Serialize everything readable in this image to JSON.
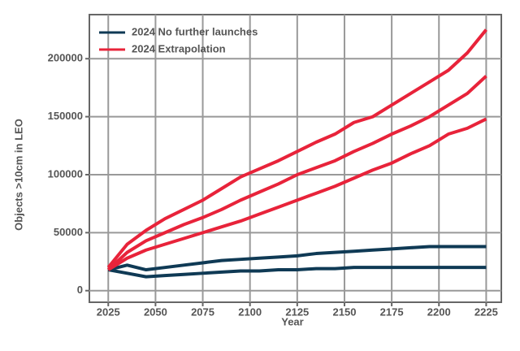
{
  "chart_data": {
    "type": "line",
    "x_label": "Year",
    "y_label": "Objects >10cm in LEO",
    "x": [
      2025,
      2035,
      2045,
      2055,
      2065,
      2075,
      2085,
      2095,
      2105,
      2115,
      2125,
      2135,
      2145,
      2155,
      2165,
      2175,
      2185,
      2195,
      2205,
      2215,
      2225
    ],
    "series": [
      {
        "name": "2024 No further launches",
        "color": "#0f3a55",
        "values": [
          18000,
          22000,
          18000,
          20000,
          22000,
          24000,
          26000,
          27000,
          28000,
          29000,
          30000,
          32000,
          33000,
          34000,
          35000,
          36000,
          37000,
          38000,
          38000,
          38000,
          38000
        ]
      },
      {
        "name": "2024 No further launches",
        "color": "#0f3a55",
        "values": [
          18000,
          15000,
          12000,
          13000,
          14000,
          15000,
          16000,
          17000,
          17000,
          18000,
          18000,
          19000,
          19000,
          20000,
          20000,
          20000,
          20000,
          20000,
          20000,
          20000,
          20000
        ]
      },
      {
        "name": "2024 Extrapolation",
        "color": "#e8233a",
        "values": [
          20000,
          40000,
          52000,
          62000,
          70000,
          78000,
          88000,
          98000,
          105000,
          112000,
          120000,
          128000,
          135000,
          145000,
          150000,
          160000,
          170000,
          180000,
          190000,
          205000,
          225000
        ]
      },
      {
        "name": "2024 Extrapolation",
        "color": "#e8233a",
        "values": [
          18000,
          33000,
          43000,
          50000,
          57000,
          63000,
          70000,
          78000,
          85000,
          92000,
          100000,
          106000,
          112000,
          120000,
          127000,
          135000,
          142000,
          150000,
          160000,
          170000,
          185000
        ]
      },
      {
        "name": "2024 Extrapolation",
        "color": "#e8233a",
        "values": [
          18000,
          28000,
          35000,
          40000,
          45000,
          50000,
          55000,
          60000,
          66000,
          72000,
          78000,
          84000,
          90000,
          97000,
          104000,
          110000,
          118000,
          125000,
          135000,
          140000,
          148000
        ]
      }
    ],
    "xlim": [
      2015,
      2233
    ],
    "xticks": [
      2025,
      2050,
      2075,
      2100,
      2125,
      2150,
      2175,
      2200,
      2225
    ],
    "ylim": [
      -10000,
      238000
    ],
    "yticks": [
      0,
      50000,
      100000,
      150000,
      200000
    ],
    "grid": true,
    "legend": "top-left"
  }
}
